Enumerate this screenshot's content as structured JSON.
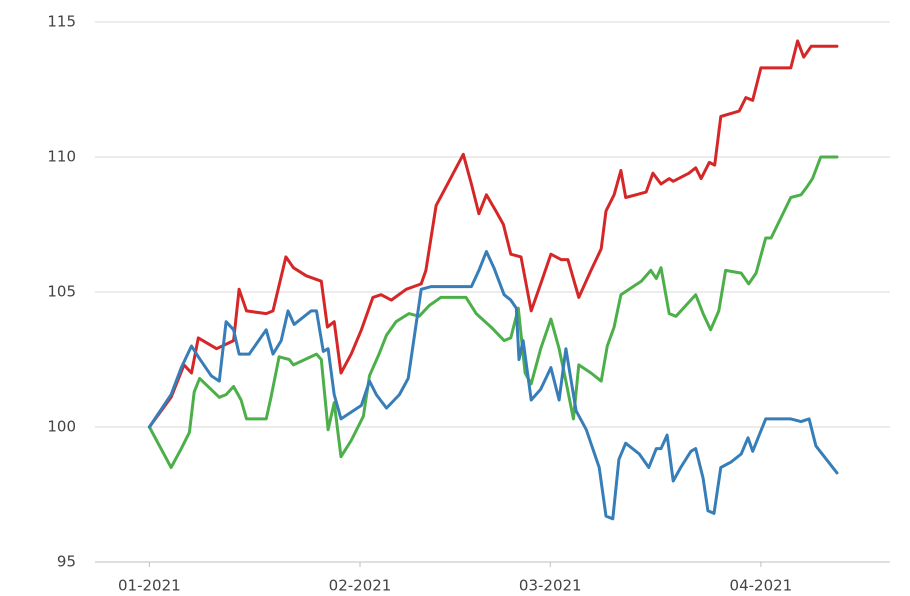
{
  "chart_data": {
    "type": "line",
    "xlim": [
      -8,
      109
    ],
    "xticks": [
      {
        "value": 0,
        "label": "01-2021"
      },
      {
        "value": 31,
        "label": "02-2021"
      },
      {
        "value": 59,
        "label": "03-2021"
      },
      {
        "value": 90,
        "label": "04-2021"
      }
    ],
    "ylim": [
      95,
      115
    ],
    "yticks": [
      95,
      100,
      105,
      110,
      115
    ],
    "grid": true,
    "series": [
      {
        "color": "#d62728",
        "x": [
          0,
          3.2,
          5.1,
          6.2,
          7.2,
          9.9,
          12.4,
          13.2,
          14.3,
          17.2,
          18.2,
          20.1,
          21.2,
          23.1,
          25.3,
          26.2,
          27.2,
          28.2,
          29.7,
          31.2,
          32.9,
          34.1,
          35.6,
          37.8,
          40.0,
          40.7,
          42.2,
          44.1,
          46.2,
          47.4,
          48.5,
          49.6,
          51.0,
          52.1,
          53.2,
          54.7,
          56.2,
          57.6,
          59.1,
          60.6,
          61.6,
          63.2,
          65.0,
          66.5,
          67.2,
          68.4,
          69.4,
          70.1,
          73.1,
          74.1,
          75.3,
          76.5,
          77.1,
          79.4,
          80.4,
          81.2,
          82.4,
          83.2,
          84.1,
          86.8,
          87.8,
          88.8,
          90.0,
          94.4,
          95.4,
          96.3,
          97.4,
          101.2
        ],
        "values": [
          100,
          101.1,
          102.3,
          102.0,
          103.3,
          102.9,
          103.2,
          105.1,
          104.3,
          104.2,
          104.3,
          106.3,
          105.9,
          105.6,
          105.4,
          103.7,
          103.9,
          102.0,
          102.7,
          103.6,
          104.8,
          104.9,
          104.7,
          105.1,
          105.3,
          105.8,
          108.2,
          109.1,
          110.1,
          109.0,
          107.9,
          108.6,
          108.0,
          107.5,
          106.4,
          106.3,
          104.3,
          105.3,
          106.4,
          106.2,
          106.2,
          104.8,
          105.8,
          106.6,
          108.0,
          108.6,
          109.5,
          108.5,
          108.7,
          109.4,
          109.0,
          109.2,
          109.1,
          109.4,
          109.6,
          109.2,
          109.8,
          109.7,
          111.5,
          111.7,
          112.2,
          112.1,
          113.3,
          113.3,
          114.3,
          113.7,
          114.1,
          114.1
        ]
      },
      {
        "color": "#4daf4a",
        "x": [
          0,
          3.2,
          4.7,
          5.9,
          6.6,
          7.4,
          10.3,
          11.3,
          12.4,
          13.5,
          14.3,
          17.2,
          17.9,
          19.1,
          20.6,
          21.2,
          24.6,
          25.3,
          26.3,
          27.2,
          28.2,
          29.7,
          31.5,
          32.4,
          33.8,
          34.9,
          36.3,
          38.2,
          39.7,
          41.2,
          42.9,
          46.6,
          48.1,
          50.3,
          52.2,
          53.2,
          54.3,
          55.3,
          56.2,
          57.6,
          59.1,
          60.3,
          61.3,
          62.4,
          63.2,
          65.0,
          66.5,
          67.4,
          68.4,
          69.4,
          72.4,
          73.8,
          74.6,
          75.3,
          76.5,
          77.5,
          80.4,
          81.5,
          82.6,
          83.8,
          84.8,
          87.1,
          88.2,
          89.3,
          90.7,
          91.5,
          94.4,
          95.9,
          96.8,
          97.6,
          98.8,
          101.2
        ],
        "values": [
          100,
          98.5,
          99.2,
          99.8,
          101.3,
          101.8,
          101.1,
          101.2,
          101.5,
          101.0,
          100.3,
          100.3,
          101.1,
          102.6,
          102.5,
          102.3,
          102.7,
          102.5,
          99.9,
          100.9,
          98.9,
          99.5,
          100.4,
          101.9,
          102.7,
          103.4,
          103.9,
          104.2,
          104.1,
          104.5,
          104.8,
          104.8,
          104.2,
          103.7,
          103.2,
          103.3,
          104.4,
          102.0,
          101.6,
          102.9,
          104.0,
          102.9,
          101.7,
          100.3,
          102.3,
          102.0,
          101.7,
          103.0,
          103.7,
          104.9,
          105.4,
          105.8,
          105.5,
          105.9,
          104.2,
          104.1,
          104.9,
          104.2,
          103.6,
          104.3,
          105.8,
          105.7,
          105.3,
          105.7,
          107.0,
          107.0,
          108.5,
          108.6,
          108.9,
          109.2,
          110.0,
          110.0
        ]
      },
      {
        "color": "#377eb8",
        "x": [
          0,
          3.2,
          4.7,
          6.2,
          7.2,
          9.1,
          10.3,
          11.3,
          12.4,
          13.2,
          14.7,
          17.2,
          18.2,
          19.4,
          20.4,
          21.3,
          23.8,
          24.6,
          25.6,
          26.3,
          27.2,
          28.2,
          31.2,
          32.4,
          33.4,
          34.9,
          36.8,
          38.1,
          40.0,
          41.5,
          47.4,
          48.5,
          49.6,
          50.7,
          52.2,
          53.2,
          54.0,
          54.4,
          55.0,
          56.2,
          57.6,
          59.1,
          60.3,
          61.3,
          62.8,
          64.3,
          66.2,
          67.2,
          68.2,
          69.1,
          70.1,
          72.1,
          73.5,
          74.6,
          75.3,
          76.2,
          77.1,
          78.2,
          79.7,
          80.4,
          81.5,
          82.2,
          83.1,
          84.1,
          85.6,
          87.1,
          88.1,
          88.8,
          90.7,
          94.4,
          95.9,
          97.1,
          98.1,
          101.2
        ],
        "values": [
          100,
          101.2,
          102.2,
          103.0,
          102.6,
          101.9,
          101.7,
          103.9,
          103.6,
          102.7,
          102.7,
          103.6,
          102.7,
          103.2,
          104.3,
          103.8,
          104.3,
          104.3,
          102.8,
          102.9,
          101.2,
          100.3,
          100.8,
          101.7,
          101.2,
          100.7,
          101.2,
          101.8,
          105.1,
          105.2,
          105.2,
          105.8,
          106.5,
          105.9,
          104.9,
          104.7,
          104.4,
          102.5,
          103.2,
          101.0,
          101.4,
          102.2,
          101.0,
          102.9,
          100.6,
          99.9,
          98.5,
          96.7,
          96.6,
          98.8,
          99.4,
          99.0,
          98.5,
          99.2,
          99.2,
          99.7,
          98.0,
          98.5,
          99.1,
          99.2,
          98.1,
          96.9,
          96.8,
          98.5,
          98.7,
          99.0,
          99.6,
          99.1,
          100.3,
          100.3,
          100.2,
          100.3,
          99.3,
          98.3
        ]
      }
    ]
  }
}
